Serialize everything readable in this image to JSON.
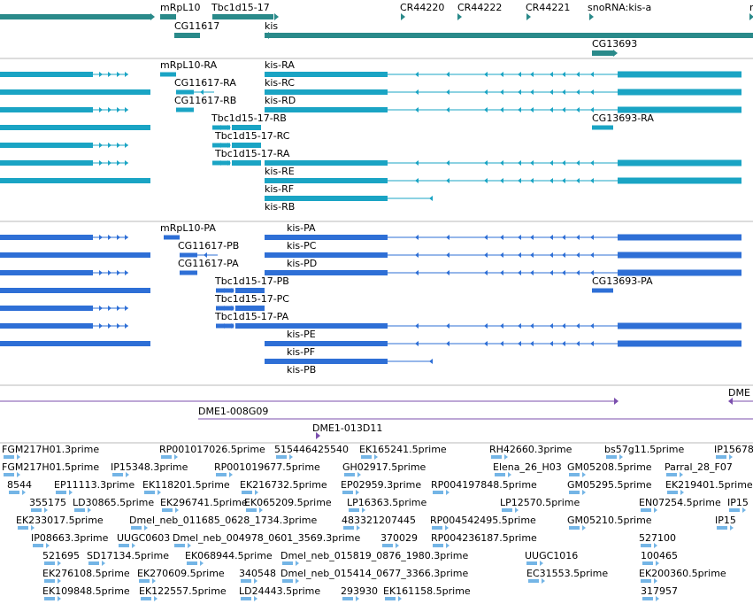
{
  "colors": {
    "genes": "#2a8a8a",
    "transcripts_rna": "#1aa4c4",
    "transcripts_prot": "#2e6fd6",
    "clones": "#7b4fae",
    "ests": "#74b5e6",
    "separator": "#b8b8b8"
  },
  "genes": [
    {
      "label": "mRpL10"
    },
    {
      "label": "Tbc1d15-17"
    },
    {
      "label": "CR44220"
    },
    {
      "label": "CR44222"
    },
    {
      "label": "CR44221"
    },
    {
      "label": "snoRNA:kis-a"
    },
    {
      "label": "n"
    },
    {
      "label": "CG11617"
    },
    {
      "label": "kis"
    },
    {
      "label": "CG13693"
    }
  ],
  "transcripts_rna": [
    {
      "label": "mRpL10-RA"
    },
    {
      "label": "kis-RA"
    },
    {
      "label": "CG11617-RA"
    },
    {
      "label": "kis-RC"
    },
    {
      "label": "CG11617-RB"
    },
    {
      "label": "kis-RD"
    },
    {
      "label": "Tbc1d15-17-RB"
    },
    {
      "label": "CG13693-RA"
    },
    {
      "label": "Tbc1d15-17-RC"
    },
    {
      "label": "Tbc1d15-17-RA"
    },
    {
      "label": "kis-RE"
    },
    {
      "label": "kis-RF"
    },
    {
      "label": "kis-RB"
    }
  ],
  "transcripts_prot": [
    {
      "label": "mRpL10-PA"
    },
    {
      "label": "kis-PA"
    },
    {
      "label": "CG11617-PB"
    },
    {
      "label": "kis-PC"
    },
    {
      "label": "CG11617-PA"
    },
    {
      "label": "kis-PD"
    },
    {
      "label": "Tbc1d15-17-PB"
    },
    {
      "label": "CG13693-PA"
    },
    {
      "label": "Tbc1d15-17-PC"
    },
    {
      "label": "Tbc1d15-17-PA"
    },
    {
      "label": "kis-PE"
    },
    {
      "label": "kis-PF"
    },
    {
      "label": "kis-PB"
    }
  ],
  "clones": [
    {
      "label": "DME1-008G09"
    },
    {
      "label": "DME1-013D11"
    },
    {
      "label": "DME"
    }
  ],
  "ests": [
    {
      "label": "FGM217H01.3prime"
    },
    {
      "label": "RP001017026.5prime"
    },
    {
      "label": "515446425540"
    },
    {
      "label": "EK165241.5prime"
    },
    {
      "label": "RH42660.3prime"
    },
    {
      "label": "bs57g11.5prime"
    },
    {
      "label": "IP15678"
    },
    {
      "label": "FGM217H01.5prime"
    },
    {
      "label": "IP15348.3prime"
    },
    {
      "label": "RP001019677.5prime"
    },
    {
      "label": "GH02917.5prime"
    },
    {
      "label": "Elena_26_H03"
    },
    {
      "label": "GM05208.5prime"
    },
    {
      "label": "Parral_28_F07"
    },
    {
      "label": "8544"
    },
    {
      "label": "EP11113.3prime"
    },
    {
      "label": "EK118201.5prime"
    },
    {
      "label": "EK216732.5prime"
    },
    {
      "label": "EP02959.3prime"
    },
    {
      "label": "RP004197848.5prime"
    },
    {
      "label": "GM05295.5prime"
    },
    {
      "label": "EK219401.5prime"
    },
    {
      "label": "355175"
    },
    {
      "label": "LD30865.5prime"
    },
    {
      "label": "EK296741.5prime"
    },
    {
      "label": "EK065209.5prime"
    },
    {
      "label": "LP16363.5prime"
    },
    {
      "label": "LP12570.5prime"
    },
    {
      "label": "EN07254.5prime"
    },
    {
      "label": "IP15"
    },
    {
      "label": "EK233017.5prime"
    },
    {
      "label": "Dmel_neb_011685_0628_1734.3prime"
    },
    {
      "label": "483321207445"
    },
    {
      "label": "RP004542495.5prime"
    },
    {
      "label": "GM05210.5prime"
    },
    {
      "label": "IP15"
    },
    {
      "label": "IP08663.3prime"
    },
    {
      "label": "UUGC0603"
    },
    {
      "label": "Dmel_neb_004978_0601_3569.3prime"
    },
    {
      "label": "370029"
    },
    {
      "label": "RP004236187.5prime"
    },
    {
      "label": "527100"
    },
    {
      "label": "521695"
    },
    {
      "label": "SD17134.5prime"
    },
    {
      "label": "EK068944.5prime"
    },
    {
      "label": "Dmel_neb_015819_0876_1980.3prime"
    },
    {
      "label": "UUGC1016"
    },
    {
      "label": "100465"
    },
    {
      "label": "EK276108.5prime"
    },
    {
      "label": "EK270609.5prime"
    },
    {
      "label": "340548"
    },
    {
      "label": "Dmel_neb_015414_0677_3366.3prime"
    },
    {
      "label": "EC31553.5prime"
    },
    {
      "label": "EK200360.5prime"
    },
    {
      "label": "EK109848.5prime"
    },
    {
      "label": "EK122557.5prime"
    },
    {
      "label": "LD24443.5prime"
    },
    {
      "label": "293930"
    },
    {
      "label": "EK161158.5prime"
    },
    {
      "label": "317957"
    }
  ]
}
